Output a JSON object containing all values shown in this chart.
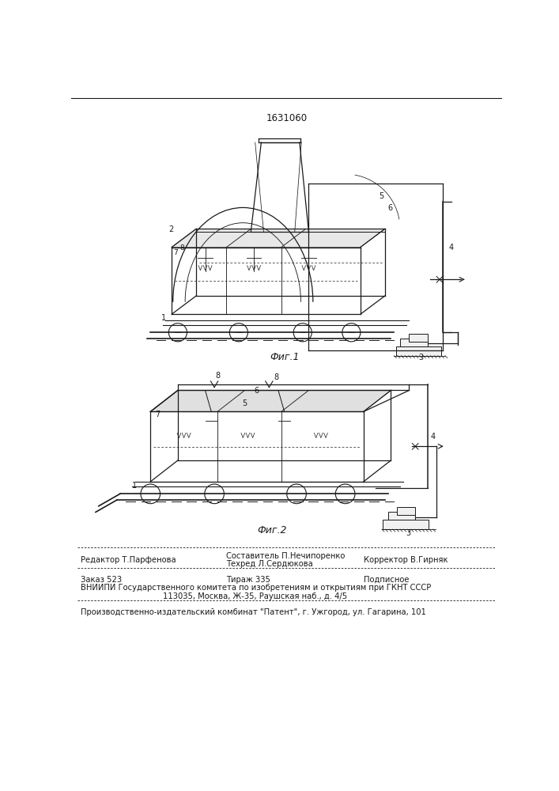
{
  "patent_number": "1631060",
  "fig1_label": "Фиг.1",
  "fig2_label": "Фиг.2",
  "footer_line1_left": "Редактор Т.Парфенова",
  "footer_line1_center": "Составитель П.Нечипоренко",
  "footer_line2_center": "Техред Л.Сердюкова",
  "footer_line2_right": "Корректор В.Гирняк",
  "footer_line3_left": "Заказ 523",
  "footer_line3_center": "Тираж 335",
  "footer_line3_right": "Подписное",
  "footer_line4": "ВНИИПИ Государственного комитета по изобретениям и открытиям при ГКНТ СССР",
  "footer_line5": "113035, Москва, Ж-35, Раушская наб., д. 4/5",
  "footer_line6": "Производственно-издательский комбинат \"Патент\", г. Ужгород, ул. Гагарина, 101",
  "bg_color": "#ffffff",
  "line_color": "#1a1a1a",
  "text_color": "#1a1a1a"
}
